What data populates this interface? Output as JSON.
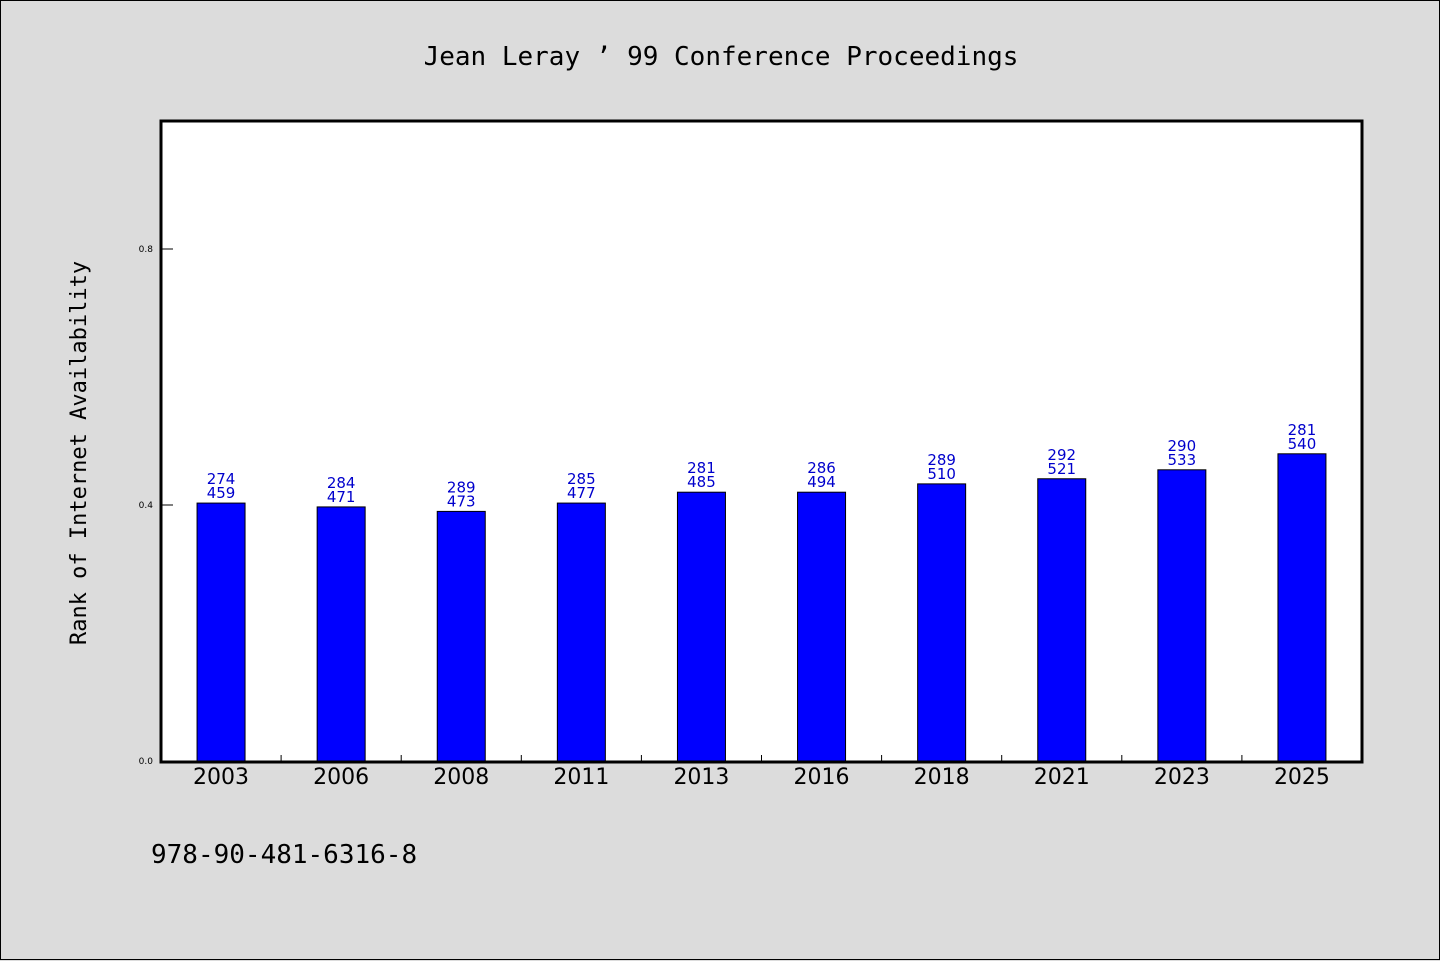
{
  "chart_data": {
    "type": "bar",
    "title": "Jean Leray ’ 99 Conference Proceedings",
    "ylabel": "Rank of Internet Availability",
    "xlabel": "",
    "categories": [
      "2003",
      "2006",
      "2008",
      "2011",
      "2013",
      "2016",
      "2018",
      "2021",
      "2023",
      "2025"
    ],
    "series": [
      {
        "values": [
          0.403,
          0.397,
          0.39,
          0.403,
          0.42,
          0.42,
          0.433,
          0.441,
          0.455,
          0.48
        ],
        "color": "#0000ff"
      }
    ],
    "data_labels": [
      [
        "274",
        "459"
      ],
      [
        "284",
        "471"
      ],
      [
        "289",
        "473"
      ],
      [
        "285",
        "477"
      ],
      [
        "281",
        "485"
      ],
      [
        "286",
        "494"
      ],
      [
        "289",
        "510"
      ],
      [
        "292",
        "521"
      ],
      [
        "290",
        "533"
      ],
      [
        "281",
        "540"
      ]
    ],
    "ylim": [
      0,
      1.0
    ],
    "yticks": [
      0.0,
      0.4,
      0.8
    ],
    "ytick_labels": [
      "0.0",
      "0.4",
      "0.8"
    ],
    "grid": false,
    "legend": "none"
  },
  "footer_text": "978-90-481-6316-8",
  "colors": {
    "background": "#dcdcdc",
    "plot_background": "#ffffff",
    "bar": "#0000ff",
    "data_label": "#0000cc"
  }
}
